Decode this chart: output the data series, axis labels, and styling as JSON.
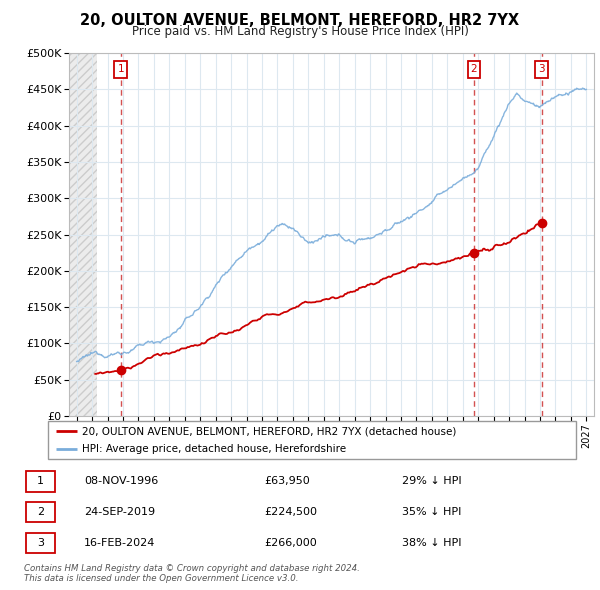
{
  "title": "20, OULTON AVENUE, BELMONT, HEREFORD, HR2 7YX",
  "subtitle": "Price paid vs. HM Land Registry's House Price Index (HPI)",
  "ylabel_ticks": [
    "£0",
    "£50K",
    "£100K",
    "£150K",
    "£200K",
    "£250K",
    "£300K",
    "£350K",
    "£400K",
    "£450K",
    "£500K"
  ],
  "ytick_values": [
    0,
    50000,
    100000,
    150000,
    200000,
    250000,
    300000,
    350000,
    400000,
    450000,
    500000
  ],
  "ylim": [
    0,
    500000
  ],
  "xlim_start": 1993.5,
  "xlim_end": 2027.5,
  "hatch_end": 1995.3,
  "sale_points": [
    {
      "date_num": 1996.86,
      "price": 63950,
      "label": "1"
    },
    {
      "date_num": 2019.73,
      "price": 224500,
      "label": "2"
    },
    {
      "date_num": 2024.12,
      "price": 266000,
      "label": "3"
    }
  ],
  "vline_dates": [
    1996.86,
    2019.73,
    2024.12
  ],
  "red_line_color": "#cc0000",
  "blue_line_color": "#7aaddb",
  "grid_color": "#dde8f0",
  "vline_color": "#cc3333",
  "legend_entries": [
    "20, OULTON AVENUE, BELMONT, HEREFORD, HR2 7YX (detached house)",
    "HPI: Average price, detached house, Herefordshire"
  ],
  "table_rows": [
    {
      "num": "1",
      "date": "08-NOV-1996",
      "price": "£63,950",
      "note": "29% ↓ HPI"
    },
    {
      "num": "2",
      "date": "24-SEP-2019",
      "price": "£224,500",
      "note": "35% ↓ HPI"
    },
    {
      "num": "3",
      "date": "16-FEB-2024",
      "price": "£266,000",
      "note": "38% ↓ HPI"
    }
  ],
  "footnote": "Contains HM Land Registry data © Crown copyright and database right 2024.\nThis data is licensed under the Open Government Licence v3.0.",
  "xticks": [
    1994,
    1995,
    1996,
    1997,
    1998,
    1999,
    2000,
    2001,
    2002,
    2003,
    2004,
    2005,
    2006,
    2007,
    2008,
    2009,
    2010,
    2011,
    2012,
    2013,
    2014,
    2015,
    2016,
    2017,
    2018,
    2019,
    2020,
    2021,
    2022,
    2023,
    2024,
    2025,
    2026,
    2027
  ]
}
